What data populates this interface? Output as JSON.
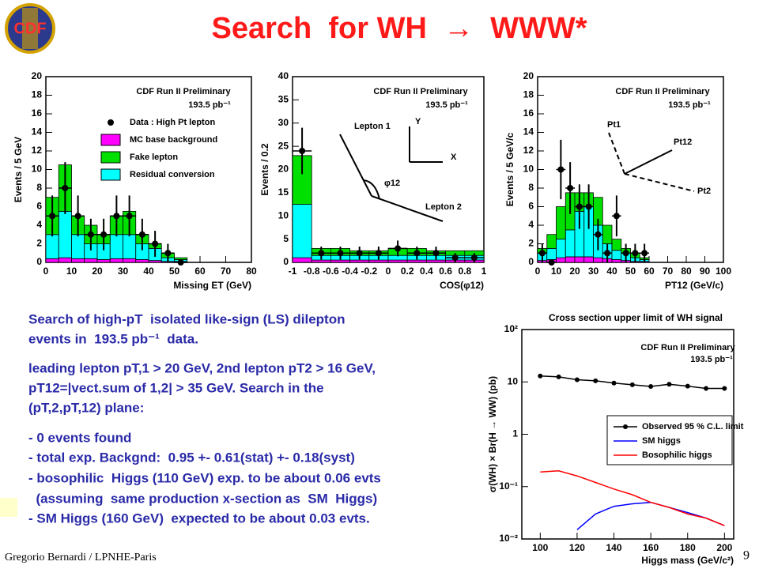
{
  "header": {
    "title": "Search  for WH  →  WWW*",
    "logo": "CDF"
  },
  "chart_data": [
    {
      "type": "histogram",
      "xlabel": "Missing ET (GeV)",
      "ylabel": "Events / 5 GeV",
      "bins": [
        0,
        5,
        10,
        15,
        20,
        25,
        30,
        35,
        40,
        45,
        50,
        55
      ],
      "series": [
        {
          "name": "MC base background",
          "color": "#ff00ff",
          "values": [
            0.4,
            0.5,
            0.4,
            0.4,
            0.3,
            0.4,
            0.4,
            0.3,
            0.2,
            0.1,
            0.1
          ]
        },
        {
          "name": "Residual conversion",
          "color": "#00ffff",
          "values": [
            2.6,
            5,
            2.6,
            1.6,
            1.7,
            2.6,
            2.6,
            1.7,
            1.3,
            0.4,
            0.2
          ]
        },
        {
          "name": "Fake lepton",
          "color": "#00e000",
          "values": [
            4,
            5,
            2,
            2,
            1,
            2,
            2.5,
            1,
            0.5,
            0.5,
            0.2
          ]
        }
      ],
      "points": {
        "name": "Data : High Pt lepton",
        "values": [
          5,
          8,
          5,
          3,
          3,
          5,
          5,
          3,
          2,
          1,
          0
        ],
        "errors": [
          2.2,
          2.8,
          2.2,
          1.7,
          1.7,
          2.2,
          2.2,
          1.7,
          1.4,
          1,
          0
        ]
      },
      "xlim": [
        0,
        80
      ],
      "xticks": [
        0,
        10,
        20,
        30,
        40,
        50,
        60,
        70,
        80
      ],
      "ylim": [
        0,
        20
      ],
      "yticks": [
        0,
        2,
        4,
        6,
        8,
        10,
        12,
        14,
        16,
        18,
        20
      ],
      "annotations": [
        "CDF Run II Preliminary",
        "193.5 pb⁻¹"
      ],
      "legend": true
    },
    {
      "type": "histogram",
      "xlabel": "COS(φ12)",
      "ylabel": "Events / 0.2",
      "bins": [
        -1,
        -0.8,
        -0.6,
        -0.4,
        -0.2,
        0,
        0.2,
        0.4,
        0.6,
        0.8,
        1
      ],
      "series": [
        {
          "color": "#ff00ff",
          "values": [
            1,
            0.5,
            0.5,
            0.5,
            0.5,
            0.5,
            0.5,
            0.5,
            0.5,
            0.5
          ]
        },
        {
          "color": "#00ffff",
          "values": [
            11.5,
            1,
            1,
            1,
            1,
            1,
            1,
            1,
            1,
            1
          ]
        },
        {
          "color": "#00e000",
          "values": [
            10.5,
            1.5,
            1.5,
            1,
            1,
            1.5,
            1.5,
            1,
            1,
            1
          ]
        }
      ],
      "points": {
        "values": [
          24,
          2,
          2,
          2,
          2,
          3,
          2,
          2,
          1,
          1
        ],
        "errors": [
          5,
          1.4,
          1.4,
          1.4,
          1.4,
          1.7,
          1.4,
          1.4,
          1,
          1
        ]
      },
      "xlim": [
        -1,
        1
      ],
      "xticks": [
        -1,
        -0.8,
        -0.6,
        -0.4,
        -0.2,
        0,
        0.2,
        0.4,
        0.6,
        0.8,
        1
      ],
      "ylim": [
        0,
        40
      ],
      "yticks": [
        0,
        5,
        10,
        15,
        20,
        25,
        30,
        35,
        40
      ],
      "annotations": [
        "CDF Run II Preliminary",
        "193.5 pb⁻¹",
        "Lepton 1",
        "Y",
        "X",
        "φ12",
        "Lepton 2"
      ]
    },
    {
      "type": "histogram",
      "xlabel": "PT12 (GeV/c)",
      "ylabel": "Events / 5 GeV/c",
      "bins": [
        0,
        5,
        10,
        15,
        20,
        25,
        30,
        35,
        40,
        45,
        50,
        55,
        60
      ],
      "series": [
        {
          "color": "#ff00ff",
          "values": [
            0.2,
            0.3,
            0.5,
            0.6,
            0.6,
            0.6,
            0.5,
            0.4,
            0.3,
            0.2,
            0.1,
            0.1
          ]
        },
        {
          "color": "#00ffff",
          "values": [
            0.8,
            1.2,
            2,
            2.9,
            4.9,
            5.4,
            3.5,
            1.6,
            1,
            0.8,
            0.4,
            0.2
          ]
        },
        {
          "color": "#00e000",
          "values": [
            0.5,
            1.5,
            3.5,
            4,
            2,
            1.5,
            3,
            2,
            1.2,
            0.5,
            0.5,
            0.2
          ]
        }
      ],
      "points": {
        "values": [
          1,
          0,
          10,
          8,
          6,
          6,
          3,
          1,
          5,
          1,
          1,
          1
        ],
        "errors": [
          1,
          0,
          3.2,
          2.8,
          2.4,
          2.4,
          1.7,
          1,
          2.2,
          1,
          1,
          1
        ]
      },
      "xlim": [
        0,
        100
      ],
      "xticks": [
        0,
        10,
        20,
        30,
        40,
        50,
        60,
        70,
        80,
        90,
        100
      ],
      "ylim": [
        0,
        20
      ],
      "yticks": [
        0,
        2,
        4,
        6,
        8,
        10,
        12,
        14,
        16,
        18,
        20
      ],
      "annotations": [
        "CDF Run II Preliminary",
        "193.5 pb⁻¹",
        "Pt1",
        "Pt12",
        "Pt2"
      ]
    },
    {
      "type": "line",
      "title": "Cross section upper limit of WH signal",
      "xlabel": "Higgs mass (GeV/c²)",
      "ylabel": "σ(WH) × Br(H → WW) (pb)",
      "x": [
        100,
        110,
        120,
        130,
        140,
        150,
        160,
        170,
        180,
        190,
        200
      ],
      "series": [
        {
          "name": "Observed 95 % C.L. limit",
          "color": "#000000",
          "marker": true,
          "values": [
            13,
            12.5,
            11,
            10.5,
            9.5,
            8.8,
            8.2,
            9,
            8.3,
            7.5,
            7.5
          ]
        },
        {
          "name": "SM higgs",
          "color": "#0000ff",
          "values": [
            null,
            null,
            0.015,
            0.03,
            0.042,
            0.047,
            0.05,
            0.04,
            0.032,
            0.025,
            0.018
          ]
        },
        {
          "name": "Bosophilic higgs",
          "color": "#ff0000",
          "values": [
            0.19,
            0.2,
            0.16,
            0.12,
            0.09,
            0.07,
            0.05,
            0.04,
            0.03,
            0.025,
            0.018
          ]
        }
      ],
      "xlim": [
        90,
        205
      ],
      "xticks": [
        100,
        120,
        140,
        160,
        180,
        200
      ],
      "ylim": [
        0.01,
        100
      ],
      "log_y": true,
      "yticks": [
        {
          "value": 100,
          "label": "10²"
        },
        10,
        1,
        {
          "value": 0.1,
          "label": "10⁻¹"
        },
        {
          "value": 0.01,
          "label": "10⁻²"
        }
      ],
      "annotations": [
        "CDF Run II Preliminary",
        "193.5 pb⁻¹"
      ],
      "legend": true
    }
  ],
  "text": {
    "lines": [
      "Search of high-pT  isolated like-sign (LS) dilepton",
      "events in  193.5 pb⁻¹  data.",
      "leading lepton pT,1 > 20 GeV, 2nd lepton pT2 > 16 GeV,",
      "pT12=|vect.sum of 1,2| > 35 GeV. Search in the",
      "(pT,2,pT,12) plane:",
      "- 0 events found",
      "- total exp. Backgnd:  0.95 +- 0.61(stat) +- 0.18(syst)",
      "- bosophilic  Higgs (110 GeV) exp. to be about 0.06 evts",
      "  (assuming  same production x-section as  SM  Higgs)",
      "- SM Higgs (160 GeV)  expected to be about 0.03 evts."
    ]
  },
  "footer": {
    "author": "Gregorio Bernardi / LPNHE-Paris",
    "page": "9"
  }
}
